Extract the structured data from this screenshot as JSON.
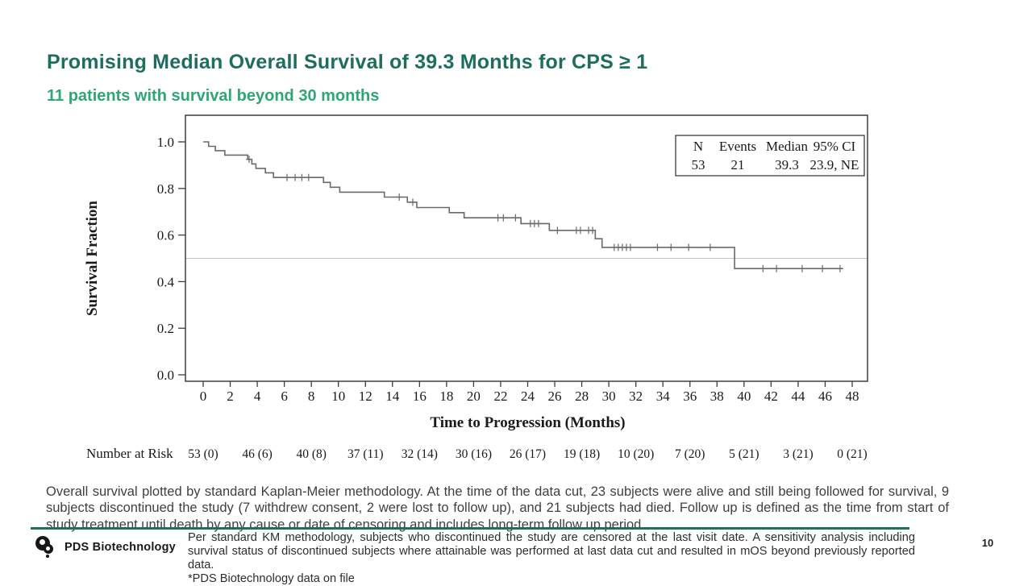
{
  "slide": {
    "title": "Promising Median Overall Survival of 39.3 Months for CPS ≥ 1",
    "subtitle": "11 patients with survival beyond 30 months"
  },
  "colors": {
    "title_accent": "#1e6e5d",
    "subtitle_accent": "#2fa578",
    "footer_bar": "#1d6f5e",
    "curve": "#6a6a6a",
    "reference_line": "#c4c4c4",
    "axis": "#3d3d3d"
  },
  "chart_data": {
    "type": "line",
    "subtype": "kaplan-meier-step",
    "xlabel": "Time to Progression (Months)",
    "ylabel": "Survival Fraction",
    "xlim": [
      0,
      48
    ],
    "ylim": [
      0.0,
      1.0
    ],
    "x_ticks": [
      0,
      2,
      4,
      6,
      8,
      10,
      12,
      14,
      16,
      18,
      20,
      22,
      24,
      26,
      28,
      30,
      32,
      34,
      36,
      38,
      40,
      42,
      44,
      46,
      48
    ],
    "y_ticks": [
      "0.0",
      "0.2",
      "0.4",
      "0.6",
      "0.8",
      "1.0"
    ],
    "grid": false,
    "reference_line_y": 0.5,
    "steps": [
      [
        0,
        1.0
      ],
      [
        0.4,
        0.981
      ],
      [
        0.9,
        0.962
      ],
      [
        1.6,
        0.943
      ],
      [
        3.3,
        0.925
      ],
      [
        3.6,
        0.905
      ],
      [
        3.9,
        0.886
      ],
      [
        4.6,
        0.867
      ],
      [
        5.2,
        0.847
      ],
      [
        8.9,
        0.826
      ],
      [
        9.4,
        0.805
      ],
      [
        10.1,
        0.784
      ],
      [
        13.4,
        0.763
      ],
      [
        15.1,
        0.741
      ],
      [
        15.8,
        0.718
      ],
      [
        18.2,
        0.696
      ],
      [
        19.3,
        0.674
      ],
      [
        23.5,
        0.649
      ],
      [
        25.6,
        0.62
      ],
      [
        29.0,
        0.584
      ],
      [
        29.5,
        0.547
      ],
      [
        39.3,
        0.456
      ]
    ],
    "curve_end_x": 47.3,
    "censor_marks": [
      3.4,
      6.2,
      6.8,
      7.3,
      7.8,
      14.5,
      15.5,
      21.8,
      22.2,
      23.1,
      24.2,
      24.5,
      24.8,
      26.2,
      27.6,
      27.9,
      28.5,
      28.8,
      30.4,
      30.7,
      31.0,
      31.3,
      31.6,
      33.6,
      34.6,
      35.9,
      37.5,
      41.4,
      42.4,
      44.3,
      45.8,
      47.1
    ],
    "stats_box": {
      "headers": [
        "N",
        "Events",
        "Median",
        "95% CI"
      ],
      "values": [
        "53",
        "21",
        "39.3",
        "23.9, NE"
      ]
    },
    "number_at_risk": {
      "label": "Number at Risk",
      "times": [
        0,
        4,
        8,
        12,
        16,
        20,
        24,
        28,
        32,
        36,
        40,
        44,
        48
      ],
      "values": [
        "53 (0)",
        "46 (6)",
        "40 (8)",
        "37 (11)",
        "32 (14)",
        "30 (16)",
        "26 (17)",
        "19 (18)",
        "10 (20)",
        "7 (20)",
        "5 (21)",
        "3 (21)",
        "0 (21)"
      ]
    }
  },
  "body_note": "Overall survival plotted by standard Kaplan-Meier methodology. At the time of the data cut, 23 subjects were alive and still being followed for survival, 9 subjects discontinued the study (7 withdrew consent, 2 were lost to follow up), and 21 subjects had died. Follow up is defined as the time from start of study treatment until death by any cause or date of censoring and includes long-term follow up period.",
  "footer": {
    "logo_text": "PDS Biotechnology",
    "note": "Per standard KM methodology, subjects who discontinued the study are censored at the last visit date. A sensitivity analysis including survival status of discontinued subjects where attainable was performed at last data cut and resulted in mOS beyond previously reported data.\n*PDS Biotechnology data on file",
    "page_number": "10"
  }
}
